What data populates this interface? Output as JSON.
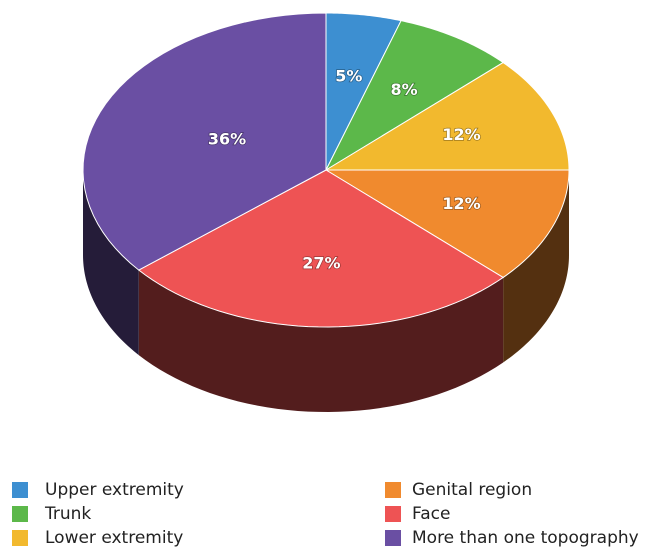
{
  "chart_data": {
    "type": "pie",
    "categories": [
      "Upper extremity",
      "Trunk",
      "Lower extremity",
      "Genital region",
      "Face",
      "More than one topography"
    ],
    "values": [
      5,
      8,
      12,
      12,
      27,
      36
    ],
    "value_labels": [
      "5%",
      "8%",
      "12%",
      "12%",
      "27%",
      "36%"
    ],
    "colors": [
      "#3d8fd1",
      "#5cb84a",
      "#f2b92e",
      "#f08a2e",
      "#ee5354",
      "#6a4fa3"
    ],
    "legend": "bottom"
  }
}
